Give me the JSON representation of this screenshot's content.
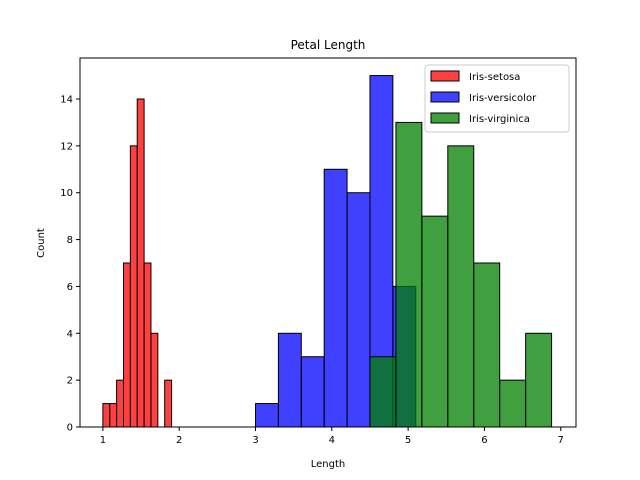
{
  "chart_data": {
    "type": "histogram",
    "title": "Petal Length",
    "xlabel": "Length",
    "ylabel": "Count",
    "xlim": [
      0.7,
      7.2
    ],
    "ylim": [
      0,
      15.75
    ],
    "xticks": [
      1,
      2,
      3,
      4,
      5,
      6,
      7
    ],
    "yticks": [
      0,
      2,
      4,
      6,
      8,
      10,
      12,
      14
    ],
    "grid": false,
    "legend_position": "top-right",
    "series": [
      {
        "name": "Iris-setosa",
        "color": "#ff0000",
        "bins": [
          {
            "x0": 1.0,
            "x1": 1.09,
            "count": 1
          },
          {
            "x0": 1.09,
            "x1": 1.18,
            "count": 1
          },
          {
            "x0": 1.18,
            "x1": 1.27,
            "count": 2
          },
          {
            "x0": 1.27,
            "x1": 1.36,
            "count": 7
          },
          {
            "x0": 1.36,
            "x1": 1.45,
            "count": 12
          },
          {
            "x0": 1.45,
            "x1": 1.54,
            "count": 14
          },
          {
            "x0": 1.54,
            "x1": 1.63,
            "count": 7
          },
          {
            "x0": 1.63,
            "x1": 1.72,
            "count": 4
          },
          {
            "x0": 1.72,
            "x1": 1.81,
            "count": 0
          },
          {
            "x0": 1.81,
            "x1": 1.9,
            "count": 2
          }
        ]
      },
      {
        "name": "Iris-versicolor",
        "color": "#0000ff",
        "bins": [
          {
            "x0": 3.0,
            "x1": 3.3,
            "count": 1
          },
          {
            "x0": 3.3,
            "x1": 3.6,
            "count": 4
          },
          {
            "x0": 3.6,
            "x1": 3.9,
            "count": 3
          },
          {
            "x0": 3.9,
            "x1": 4.2,
            "count": 11
          },
          {
            "x0": 4.2,
            "x1": 4.5,
            "count": 10
          },
          {
            "x0": 4.5,
            "x1": 4.8,
            "count": 15
          },
          {
            "x0": 4.8,
            "x1": 5.1,
            "count": 6
          }
        ]
      },
      {
        "name": "Iris-virginica",
        "color": "#008000",
        "bins": [
          {
            "x0": 4.5,
            "x1": 4.84,
            "count": 3
          },
          {
            "x0": 4.84,
            "x1": 5.18,
            "count": 13
          },
          {
            "x0": 5.18,
            "x1": 5.52,
            "count": 9
          },
          {
            "x0": 5.52,
            "x1": 5.86,
            "count": 12
          },
          {
            "x0": 5.86,
            "x1": 6.2,
            "count": 7
          },
          {
            "x0": 6.2,
            "x1": 6.54,
            "count": 2
          },
          {
            "x0": 6.54,
            "x1": 6.88,
            "count": 4
          }
        ]
      }
    ]
  }
}
